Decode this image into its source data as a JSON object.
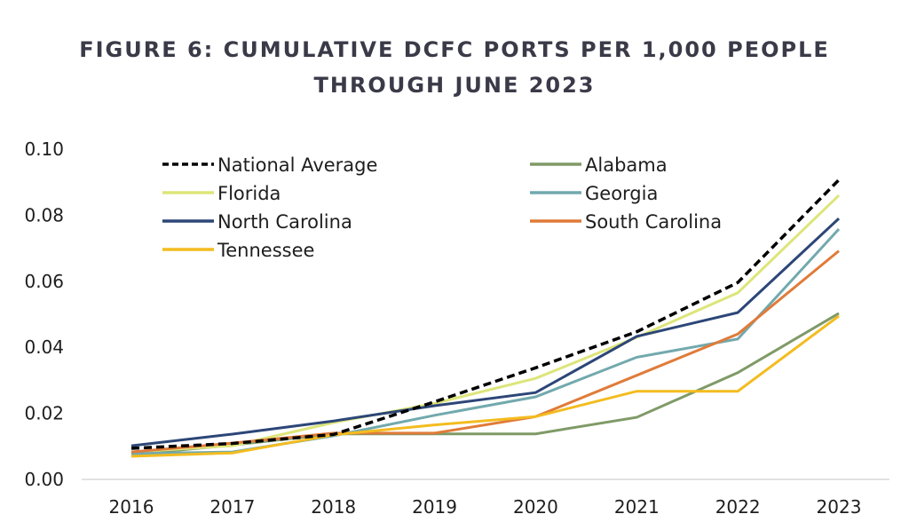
{
  "chart_data": {
    "type": "line",
    "title_lines": [
      "FIGURE 6: CUMULATIVE DCFC PORTS PER 1,000 PEOPLE",
      "THROUGH JUNE 2023"
    ],
    "xlabel": "",
    "ylabel": "",
    "x": [
      "2016",
      "2017",
      "2018",
      "2019",
      "2020",
      "2021",
      "2022",
      "2023"
    ],
    "ylim": [
      0,
      0.1
    ],
    "yticks": [
      "0.00",
      "0.02",
      "0.04",
      "0.06",
      "0.08",
      "0.10"
    ],
    "grid": false,
    "legend_position": "top-left, two columns",
    "series": [
      {
        "name": "National Average",
        "color": "#000000",
        "dashed": true,
        "values": [
          0.0094,
          0.0109,
          0.0136,
          0.0235,
          0.0338,
          0.0447,
          0.0596,
          0.0907
        ]
      },
      {
        "name": "Alabama",
        "color": "#7f9a67",
        "dashed": false,
        "values": [
          0.0075,
          0.0104,
          0.0138,
          0.0138,
          0.0138,
          0.0188,
          0.0323,
          0.0503
        ]
      },
      {
        "name": "Florida",
        "color": "#dde57a",
        "dashed": false,
        "values": [
          0.0083,
          0.0102,
          0.0172,
          0.023,
          0.0306,
          0.043,
          0.0565,
          0.086
        ]
      },
      {
        "name": "Georgia",
        "color": "#72a9ad",
        "dashed": false,
        "values": [
          0.0078,
          0.0083,
          0.0132,
          0.0194,
          0.025,
          0.037,
          0.0425,
          0.0758
        ]
      },
      {
        "name": "North Carolina",
        "color": "#2c4677",
        "dashed": false,
        "values": [
          0.0102,
          0.0137,
          0.0177,
          0.0223,
          0.0263,
          0.0433,
          0.0505,
          0.079
        ]
      },
      {
        "name": "South Carolina",
        "color": "#e07b39",
        "dashed": false,
        "values": [
          0.0083,
          0.011,
          0.014,
          0.014,
          0.019,
          0.0315,
          0.044,
          0.0692
        ]
      },
      {
        "name": "Tennessee",
        "color": "#f3bc1f",
        "dashed": false,
        "values": [
          0.007,
          0.008,
          0.0135,
          0.0165,
          0.019,
          0.0267,
          0.0267,
          0.0495
        ]
      }
    ]
  }
}
